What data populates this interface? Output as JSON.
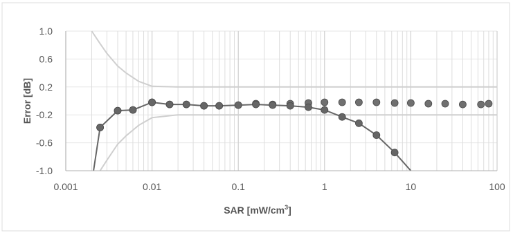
{
  "chart_data": {
    "type": "line",
    "xlabel": "SAR [mW/cm",
    "xlabel_sup": "3",
    "xlabel_end": "]",
    "ylabel": "Error [dB]",
    "x_scale": "log",
    "xlim": [
      0.001,
      100
    ],
    "ylim": [
      -1.0,
      1.0
    ],
    "x_ticks": [
      0.001,
      0.01,
      0.1,
      1,
      10,
      100
    ],
    "x_tick_labels": [
      "0.001",
      "0.01",
      "0.1",
      "1",
      "10",
      "100"
    ],
    "y_ticks": [
      1.0,
      0.6,
      0.2,
      -0.2,
      -0.6,
      -1.0
    ],
    "y_tick_labels": [
      "1.0",
      "0.6",
      "0.2",
      "-0.2",
      "-0.6",
      "-1.0"
    ],
    "grid": true,
    "legend": "none",
    "series": [
      {
        "role": "compensated",
        "marker": "circle",
        "line": false,
        "color": "#707070",
        "points": [
          [
            0.0025,
            -0.38
          ],
          [
            0.004,
            -0.14
          ],
          [
            0.006,
            -0.13
          ],
          [
            0.01,
            -0.02
          ],
          [
            0.016,
            -0.05
          ],
          [
            0.025,
            -0.05
          ],
          [
            0.04,
            -0.07
          ],
          [
            0.06,
            -0.07
          ],
          [
            0.1,
            -0.06
          ],
          [
            0.16,
            -0.04
          ],
          [
            0.25,
            -0.05
          ],
          [
            0.4,
            -0.04
          ],
          [
            0.65,
            -0.03
          ],
          [
            1.0,
            -0.02
          ],
          [
            1.6,
            -0.02
          ],
          [
            2.5,
            -0.02
          ],
          [
            4.0,
            -0.02
          ],
          [
            6.5,
            -0.03
          ],
          [
            10,
            -0.03
          ],
          [
            16,
            -0.04
          ],
          [
            25,
            -0.04
          ],
          [
            40,
            -0.05
          ],
          [
            65,
            -0.05
          ],
          [
            80,
            -0.04
          ]
        ]
      },
      {
        "role": "uncompensated",
        "marker": "circle",
        "line": true,
        "color": "#666666",
        "points": [
          [
            0.0021,
            -1.0
          ],
          [
            0.0025,
            -0.38
          ],
          [
            0.004,
            -0.14
          ],
          [
            0.006,
            -0.13
          ],
          [
            0.01,
            -0.02
          ],
          [
            0.016,
            -0.05
          ],
          [
            0.025,
            -0.05
          ],
          [
            0.04,
            -0.07
          ],
          [
            0.06,
            -0.07
          ],
          [
            0.1,
            -0.06
          ],
          [
            0.16,
            -0.05
          ],
          [
            0.25,
            -0.06
          ],
          [
            0.4,
            -0.07
          ],
          [
            0.65,
            -0.09
          ],
          [
            1.0,
            -0.13
          ],
          [
            1.6,
            -0.23
          ],
          [
            2.5,
            -0.32
          ],
          [
            4.0,
            -0.49
          ],
          [
            6.5,
            -0.74
          ],
          [
            10,
            -1.0
          ]
        ],
        "markers_on": [
          0.0025,
          0.004,
          0.006,
          0.01,
          0.016,
          0.025,
          0.04,
          0.06,
          0.1,
          0.16,
          0.25,
          0.4,
          0.65,
          1.0,
          1.6,
          2.5,
          4.0,
          6.5
        ]
      },
      {
        "role": "upper-uncertainty-bound",
        "marker": "none",
        "line": true,
        "color": "#cfcfcf",
        "points": [
          [
            0.002,
            1.0
          ],
          [
            0.0025,
            0.82
          ],
          [
            0.003,
            0.68
          ],
          [
            0.004,
            0.5
          ],
          [
            0.005,
            0.4
          ],
          [
            0.007,
            0.28
          ],
          [
            0.01,
            0.21
          ],
          [
            0.02,
            0.2
          ],
          [
            100,
            0.2
          ]
        ]
      },
      {
        "role": "lower-uncertainty-bound",
        "marker": "none",
        "line": true,
        "color": "#cfcfcf",
        "points": [
          [
            0.0025,
            -1.0
          ],
          [
            0.003,
            -0.85
          ],
          [
            0.004,
            -0.62
          ],
          [
            0.005,
            -0.5
          ],
          [
            0.007,
            -0.35
          ],
          [
            0.01,
            -0.24
          ],
          [
            0.02,
            -0.2
          ],
          [
            100,
            -0.2
          ]
        ]
      }
    ]
  },
  "colors": {
    "grid": "#e6e6e6",
    "vertical_minor": "#dddddd",
    "axis": "#b0b0b0",
    "text": "#555555",
    "border": "#d8d8d8"
  }
}
